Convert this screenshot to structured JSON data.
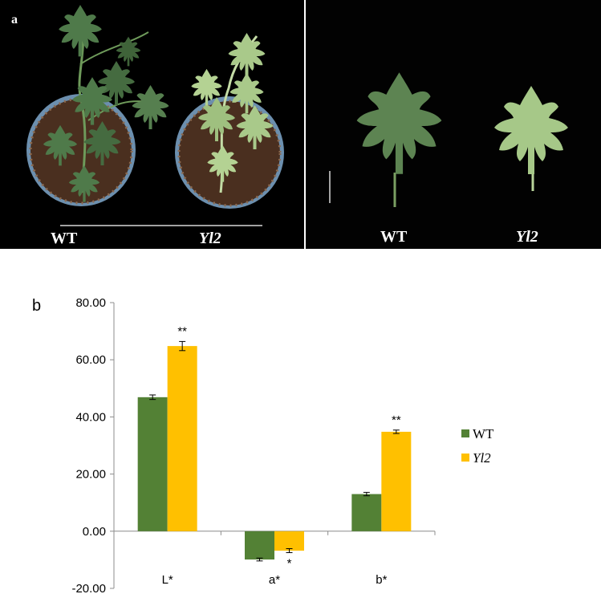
{
  "panel_a": {
    "label": "a",
    "left_labels": {
      "wt": "WT",
      "mutant": "Yl2"
    },
    "right_labels": {
      "wt": "WT",
      "mutant": "Yl2"
    },
    "colors": {
      "background": "#000000",
      "wt_leaf": "#4f7a4a",
      "mutant_leaf": "#a9c98a",
      "soil": "#4a3020",
      "pot": "#5f86a6"
    }
  },
  "panel_b": {
    "label": "b"
  },
  "chart_data": {
    "type": "bar",
    "categories": [
      "L*",
      "a*",
      "b*"
    ],
    "series": [
      {
        "name": "WT",
        "color": "#538135",
        "values": [
          46.9,
          -9.9,
          13.0
        ],
        "errors": [
          0.8,
          0.5,
          0.6
        ]
      },
      {
        "name": "Yl2",
        "color": "#ffc000",
        "values": [
          64.8,
          -6.8,
          34.8
        ],
        "errors": [
          1.6,
          0.7,
          0.6
        ]
      }
    ],
    "ylim": [
      -20,
      80
    ],
    "yticks": [
      -20,
      0,
      20,
      40,
      60,
      80
    ],
    "ytick_labels": [
      "-20.00",
      "0.00",
      "20.00",
      "40.00",
      "60.00",
      "80.00"
    ],
    "annotations": [
      {
        "category": "L*",
        "series": "Yl2",
        "text": "**"
      },
      {
        "category": "a*",
        "series": "Yl2",
        "text": "*"
      },
      {
        "category": "b*",
        "series": "Yl2",
        "text": "**"
      }
    ],
    "legend": {
      "position": "right",
      "entries": [
        "WT",
        "Yl2"
      ]
    },
    "grid": false,
    "title": "",
    "xlabel": "",
    "ylabel": ""
  }
}
